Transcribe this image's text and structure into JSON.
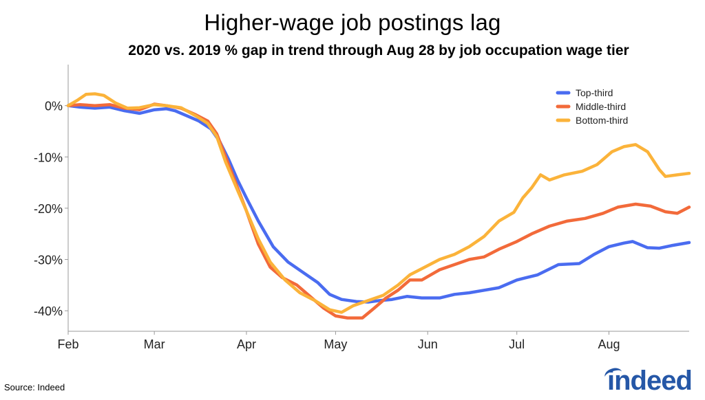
{
  "chart_data": {
    "type": "line",
    "title": "Higher-wage job postings lag",
    "subtitle": "2020 vs. 2019 % gap in trend through Aug 28 by job occupation wage tier",
    "xlabel": "",
    "ylabel": "",
    "x_ticks": [
      "Feb",
      "Mar",
      "Apr",
      "May",
      "Jun",
      "Jul",
      "Aug"
    ],
    "x_tick_dates": [
      "2020-02-01",
      "2020-03-01",
      "2020-04-01",
      "2020-05-01",
      "2020-06-01",
      "2020-07-01",
      "2020-08-01"
    ],
    "x_range": [
      "2020-02-01",
      "2020-08-28"
    ],
    "y_ticks": [
      0,
      -10,
      -20,
      -30,
      -40
    ],
    "y_tick_labels": [
      "0%",
      "-10%",
      "-20%",
      "-30%",
      "-40%"
    ],
    "ylim": [
      -44,
      8
    ],
    "grid": false,
    "legend_position": "top-right",
    "series": [
      {
        "name": "Top-third",
        "color": "#4a6cf0",
        "points": [
          [
            "2020-02-01",
            0
          ],
          [
            "2020-02-05",
            -0.3
          ],
          [
            "2020-02-10",
            -0.5
          ],
          [
            "2020-02-15",
            -0.3
          ],
          [
            "2020-02-20",
            -1.0
          ],
          [
            "2020-02-25",
            -1.5
          ],
          [
            "2020-03-01",
            -0.8
          ],
          [
            "2020-03-05",
            -0.6
          ],
          [
            "2020-03-08",
            -1.0
          ],
          [
            "2020-03-12",
            -2.0
          ],
          [
            "2020-03-16",
            -3.0
          ],
          [
            "2020-03-20",
            -4.5
          ],
          [
            "2020-03-23",
            -7.0
          ],
          [
            "2020-03-26",
            -10.5
          ],
          [
            "2020-03-29",
            -14.5
          ],
          [
            "2020-04-01",
            -18.0
          ],
          [
            "2020-04-05",
            -22.5
          ],
          [
            "2020-04-10",
            -27.5
          ],
          [
            "2020-04-15",
            -30.5
          ],
          [
            "2020-04-20",
            -32.5
          ],
          [
            "2020-04-25",
            -34.5
          ],
          [
            "2020-04-29",
            -36.8
          ],
          [
            "2020-05-03",
            -37.8
          ],
          [
            "2020-05-08",
            -38.2
          ],
          [
            "2020-05-12",
            -38.3
          ],
          [
            "2020-05-16",
            -38.0
          ],
          [
            "2020-05-20",
            -37.8
          ],
          [
            "2020-05-25",
            -37.2
          ],
          [
            "2020-05-30",
            -37.5
          ],
          [
            "2020-06-05",
            -37.5
          ],
          [
            "2020-06-10",
            -36.8
          ],
          [
            "2020-06-15",
            -36.5
          ],
          [
            "2020-06-20",
            -36.0
          ],
          [
            "2020-06-25",
            -35.5
          ],
          [
            "2020-07-01",
            -34.0
          ],
          [
            "2020-07-08",
            -33.0
          ],
          [
            "2020-07-15",
            -31.0
          ],
          [
            "2020-07-22",
            -30.8
          ],
          [
            "2020-07-27",
            -29.0
          ],
          [
            "2020-08-01",
            -27.5
          ],
          [
            "2020-08-06",
            -26.8
          ],
          [
            "2020-08-09",
            -26.5
          ],
          [
            "2020-08-14",
            -27.7
          ],
          [
            "2020-08-18",
            -27.8
          ],
          [
            "2020-08-22",
            -27.3
          ],
          [
            "2020-08-28",
            -26.7
          ]
        ]
      },
      {
        "name": "Middle-third",
        "color": "#f26a3a",
        "points": [
          [
            "2020-02-01",
            0
          ],
          [
            "2020-02-05",
            0.2
          ],
          [
            "2020-02-10",
            0.0
          ],
          [
            "2020-02-15",
            0.2
          ],
          [
            "2020-02-20",
            -0.5
          ],
          [
            "2020-02-25",
            -0.8
          ],
          [
            "2020-03-01",
            0.3
          ],
          [
            "2020-03-05",
            0.0
          ],
          [
            "2020-03-10",
            -0.5
          ],
          [
            "2020-03-15",
            -1.8
          ],
          [
            "2020-03-19",
            -3.0
          ],
          [
            "2020-03-22",
            -5.5
          ],
          [
            "2020-03-25",
            -10.0
          ],
          [
            "2020-03-29",
            -16.0
          ],
          [
            "2020-04-01",
            -20.5
          ],
          [
            "2020-04-05",
            -27.0
          ],
          [
            "2020-04-09",
            -31.5
          ],
          [
            "2020-04-13",
            -33.5
          ],
          [
            "2020-04-18",
            -35.0
          ],
          [
            "2020-04-23",
            -37.5
          ],
          [
            "2020-04-27",
            -39.5
          ],
          [
            "2020-05-01",
            -41.0
          ],
          [
            "2020-05-05",
            -41.4
          ],
          [
            "2020-05-10",
            -41.4
          ],
          [
            "2020-05-14",
            -39.5
          ],
          [
            "2020-05-18",
            -37.5
          ],
          [
            "2020-05-22",
            -36.0
          ],
          [
            "2020-05-26",
            -34.0
          ],
          [
            "2020-05-30",
            -34.0
          ],
          [
            "2020-06-05",
            -32.0
          ],
          [
            "2020-06-10",
            -31.0
          ],
          [
            "2020-06-15",
            -30.0
          ],
          [
            "2020-06-20",
            -29.5
          ],
          [
            "2020-06-25",
            -28.0
          ],
          [
            "2020-07-01",
            -26.5
          ],
          [
            "2020-07-06",
            -25.0
          ],
          [
            "2020-07-12",
            -23.5
          ],
          [
            "2020-07-18",
            -22.5
          ],
          [
            "2020-07-24",
            -22.0
          ],
          [
            "2020-07-30",
            -21.0
          ],
          [
            "2020-08-04",
            -19.8
          ],
          [
            "2020-08-10",
            -19.2
          ],
          [
            "2020-08-15",
            -19.6
          ],
          [
            "2020-08-20",
            -20.7
          ],
          [
            "2020-08-24",
            -21.0
          ],
          [
            "2020-08-28",
            -19.8
          ]
        ]
      },
      {
        "name": "Bottom-third",
        "color": "#fbb33a",
        "points": [
          [
            "2020-02-01",
            0
          ],
          [
            "2020-02-04",
            1.0
          ],
          [
            "2020-02-07",
            2.2
          ],
          [
            "2020-02-10",
            2.3
          ],
          [
            "2020-02-13",
            2.0
          ],
          [
            "2020-02-17",
            0.5
          ],
          [
            "2020-02-21",
            -0.5
          ],
          [
            "2020-02-25",
            -0.4
          ],
          [
            "2020-03-01",
            0.2
          ],
          [
            "2020-03-05",
            0.0
          ],
          [
            "2020-03-10",
            -0.4
          ],
          [
            "2020-03-15",
            -2.0
          ],
          [
            "2020-03-19",
            -3.5
          ],
          [
            "2020-03-22",
            -6.0
          ],
          [
            "2020-03-25",
            -11.0
          ],
          [
            "2020-03-29",
            -16.5
          ],
          [
            "2020-04-01",
            -20.5
          ],
          [
            "2020-04-05",
            -26.0
          ],
          [
            "2020-04-09",
            -30.5
          ],
          [
            "2020-04-14",
            -34.0
          ],
          [
            "2020-04-19",
            -36.5
          ],
          [
            "2020-04-24",
            -38.0
          ],
          [
            "2020-04-29",
            -39.8
          ],
          [
            "2020-05-03",
            -40.3
          ],
          [
            "2020-05-07",
            -39.0
          ],
          [
            "2020-05-12",
            -38.0
          ],
          [
            "2020-05-17",
            -37.0
          ],
          [
            "2020-05-22",
            -35.0
          ],
          [
            "2020-05-26",
            -33.0
          ],
          [
            "2020-05-31",
            -31.5
          ],
          [
            "2020-06-05",
            -30.0
          ],
          [
            "2020-06-10",
            -29.0
          ],
          [
            "2020-06-15",
            -27.5
          ],
          [
            "2020-06-20",
            -25.5
          ],
          [
            "2020-06-25",
            -22.5
          ],
          [
            "2020-06-30",
            -20.8
          ],
          [
            "2020-07-03",
            -18.0
          ],
          [
            "2020-07-06",
            -16.0
          ],
          [
            "2020-07-09",
            -13.5
          ],
          [
            "2020-07-12",
            -14.5
          ],
          [
            "2020-07-17",
            -13.5
          ],
          [
            "2020-07-23",
            -12.8
          ],
          [
            "2020-07-28",
            -11.5
          ],
          [
            "2020-08-02",
            -9.0
          ],
          [
            "2020-08-06",
            -8.0
          ],
          [
            "2020-08-10",
            -7.6
          ],
          [
            "2020-08-14",
            -9.0
          ],
          [
            "2020-08-18",
            -12.5
          ],
          [
            "2020-08-20",
            -13.8
          ],
          [
            "2020-08-24",
            -13.5
          ],
          [
            "2020-08-28",
            -13.2
          ]
        ]
      }
    ]
  },
  "footer": {
    "source": "Source: Indeed",
    "logo_text": "indeed"
  }
}
